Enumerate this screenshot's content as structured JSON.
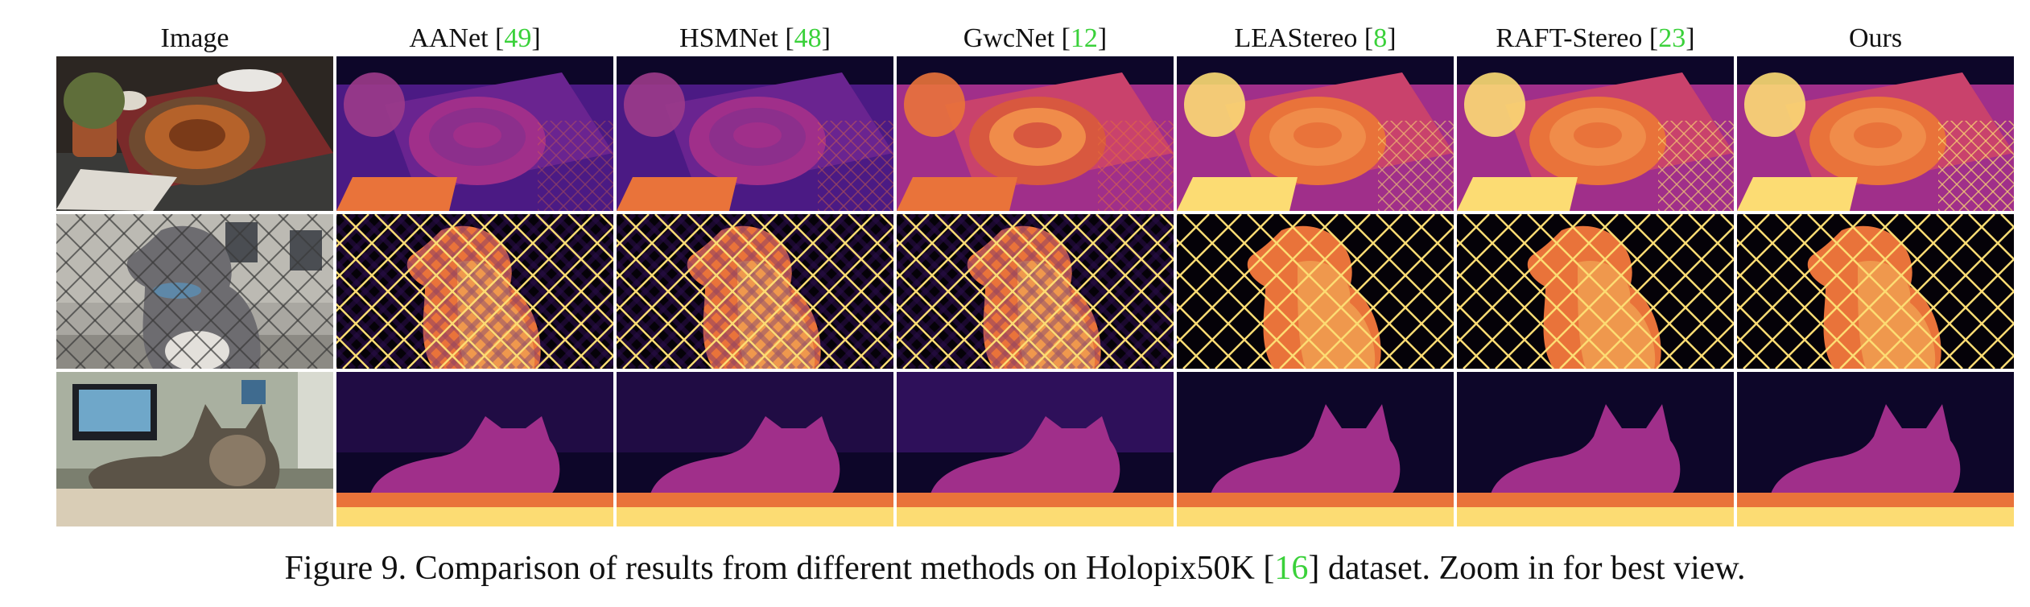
{
  "columns": [
    {
      "name": "Image",
      "ref": ""
    },
    {
      "name": "AANet",
      "ref": "49"
    },
    {
      "name": "HSMNet",
      "ref": "48"
    },
    {
      "name": "GwcNet",
      "ref": "12"
    },
    {
      "name": "LEAStereo",
      "ref": "8"
    },
    {
      "name": "RAFT-Stereo",
      "ref": "23"
    },
    {
      "name": "Ours",
      "ref": ""
    }
  ],
  "rows": [
    "pretzel-table",
    "dog-fence",
    "cat-bed"
  ],
  "caption": {
    "prefix": "Figure 9. Comparison of results from different methods on Holopix50K [",
    "ref": "16",
    "suffix": "] dataset. Zoom in for best view."
  },
  "colors": {
    "ref_green": "#3ad13a",
    "depth_dark": "#0d0629",
    "depth_purple": "#4b1a84",
    "depth_magenta": "#a02f8a",
    "depth_orange": "#e9733a",
    "depth_yellow": "#fcdc73"
  }
}
